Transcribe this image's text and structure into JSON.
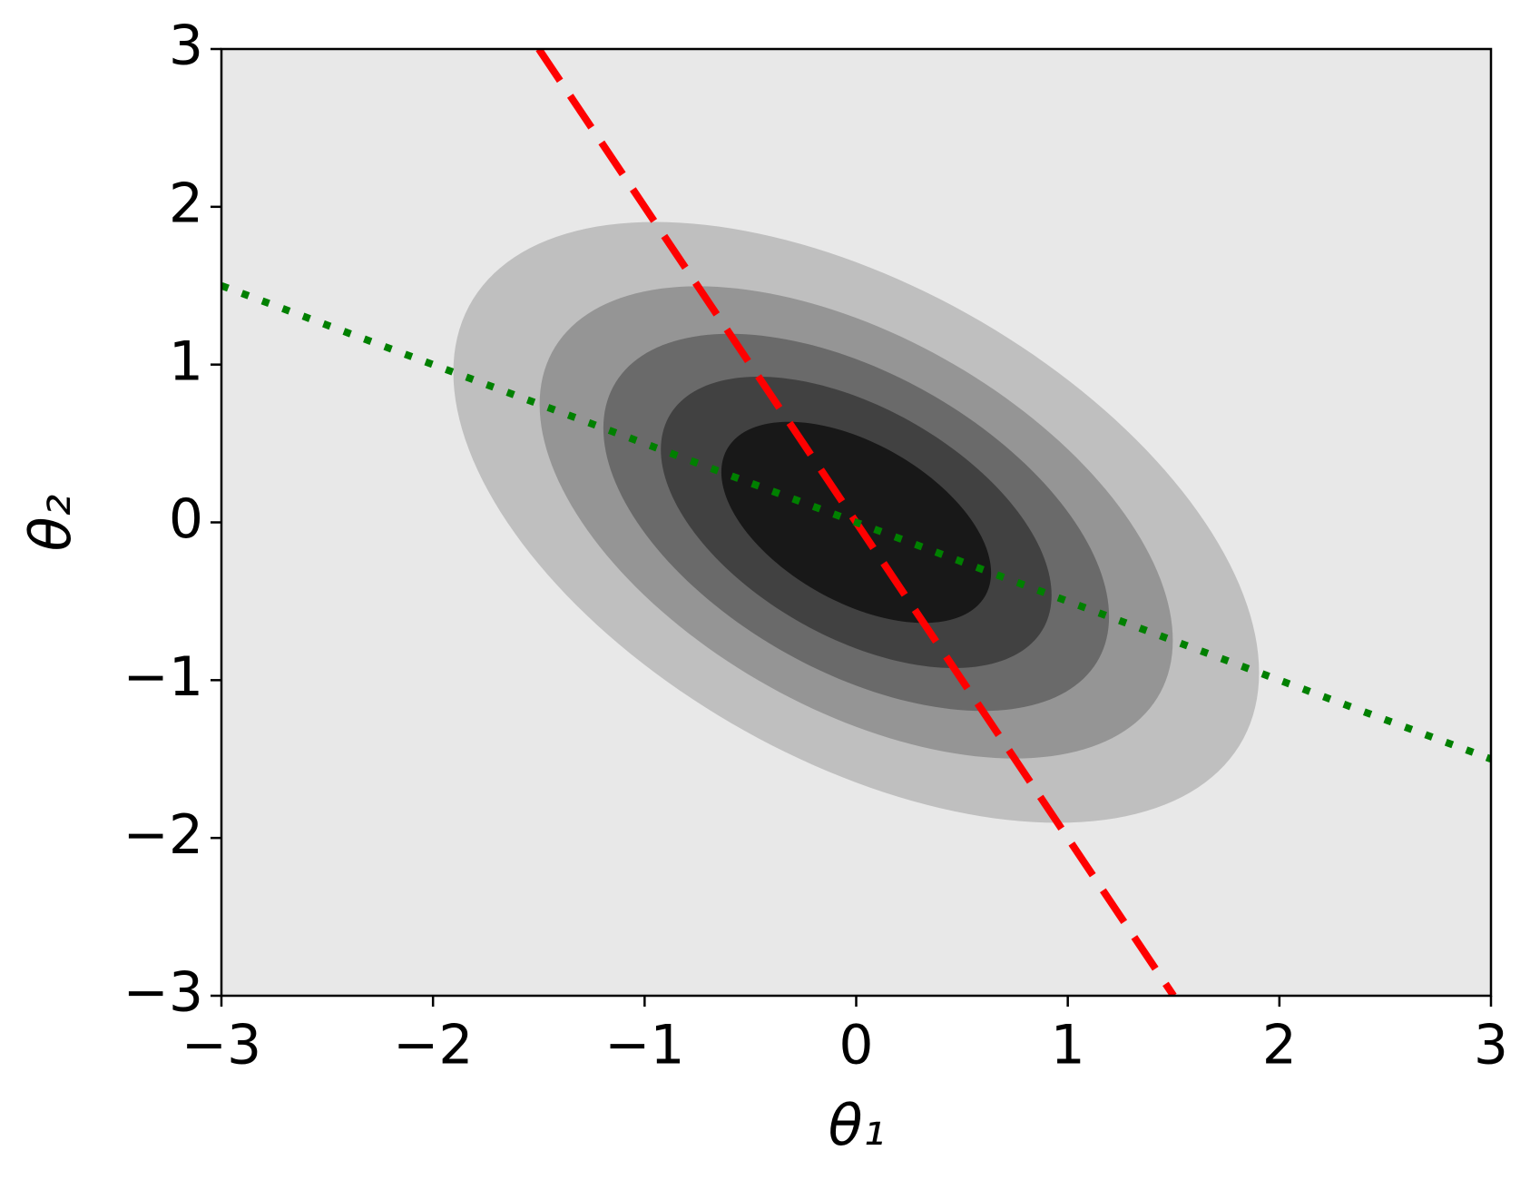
{
  "chart_data": {
    "type": "contour",
    "x_label": "θ₁",
    "y_label": "θ₂",
    "mean": [
      0,
      0
    ],
    "covariance": [
      [
        1,
        -0.5
      ],
      [
        -0.5,
        1
      ]
    ],
    "levels": [
      0.03,
      0.06,
      0.09,
      0.12,
      0.15
    ],
    "level_colors": [
      "#e8e8e8",
      "#bfbfbf",
      "#959595",
      "#6a6a6a",
      "#414141",
      "#181818"
    ],
    "series": [
      {
        "x": [
          -1.5,
          1.5
        ],
        "values": [
          3,
          -3
        ],
        "color": "#ff0000",
        "style": "dashed"
      },
      {
        "x": [
          -3,
          3
        ],
        "values": [
          1.5,
          -1.5
        ],
        "color": "#008000",
        "style": "dotted"
      }
    ],
    "xlim": [
      -3,
      3
    ],
    "ylim": [
      -3,
      3
    ],
    "xticks": [
      {
        "value": -3,
        "label": "−3"
      },
      {
        "value": -2,
        "label": "−2"
      },
      {
        "value": -1,
        "label": "−1"
      },
      0,
      1,
      2,
      3
    ],
    "yticks": [
      {
        "value": -3,
        "label": "−3"
      },
      {
        "value": -2,
        "label": "−2"
      },
      {
        "value": -1,
        "label": "−1"
      },
      0,
      1,
      2,
      3
    ]
  }
}
